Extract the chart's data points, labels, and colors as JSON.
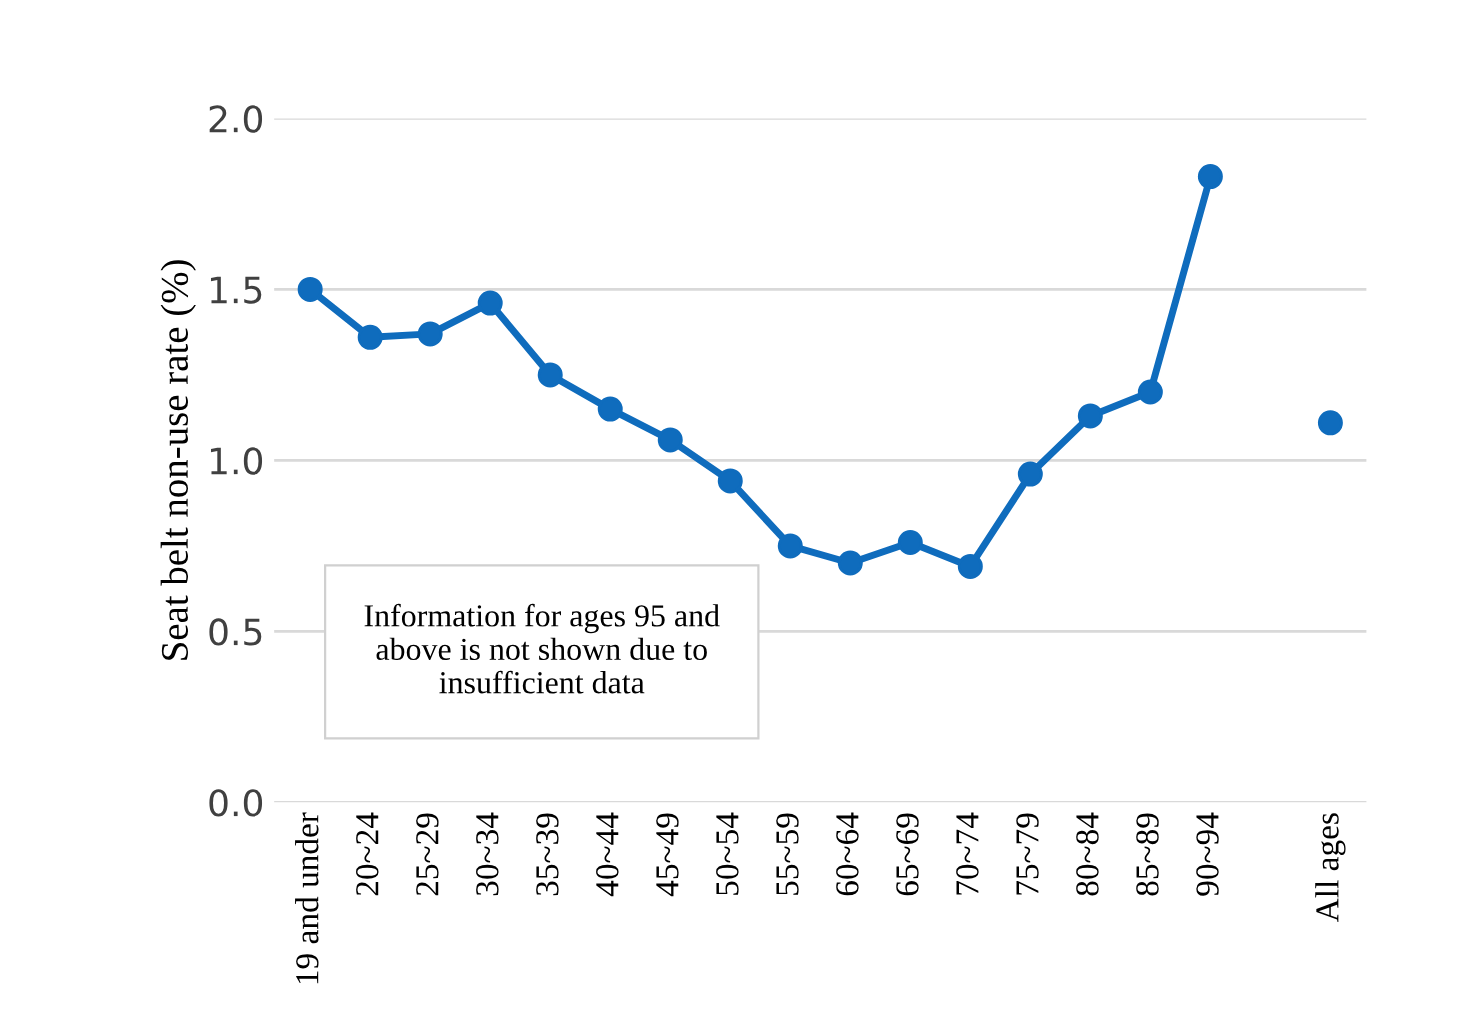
{
  "chart_data": {
    "type": "line",
    "ylabel": "Seat belt non-use rate (%)",
    "categories": [
      "19 and under",
      "20~24",
      "25~29",
      "30~34",
      "35~39",
      "40~44",
      "45~49",
      "50~54",
      "55~59",
      "60~64",
      "65~69",
      "70~74",
      "75~79",
      "80~84",
      "85~89",
      "90~94",
      null,
      "All ages"
    ],
    "series": [
      {
        "color": "#0f6cbd",
        "values": [
          1.5,
          1.36,
          1.37,
          1.46,
          1.25,
          1.15,
          1.06,
          0.94,
          0.75,
          0.7,
          0.76,
          0.69,
          0.96,
          1.13,
          1.2,
          1.83,
          null,
          null
        ]
      },
      {
        "type": "scatter",
        "color": "#0f6cbd",
        "values": [
          null,
          null,
          null,
          null,
          null,
          null,
          null,
          null,
          null,
          null,
          null,
          null,
          null,
          null,
          null,
          null,
          null,
          1.11
        ]
      }
    ],
    "ylim": [
      0,
      2.0
    ],
    "yticks": [
      {
        "value": 0,
        "label": "0.0"
      },
      {
        "value": 0.5,
        "label": "0.5"
      },
      {
        "value": 1.0,
        "label": "1.0"
      },
      {
        "value": 1.5,
        "label": "1.5"
      },
      {
        "value": 2.0,
        "label": "2.0"
      }
    ],
    "grid": "y",
    "marker": "circle",
    "line_style": "solid",
    "legend": false,
    "annotations": [
      "Information for ages 95 and above is not shown due to insufficient data"
    ]
  }
}
